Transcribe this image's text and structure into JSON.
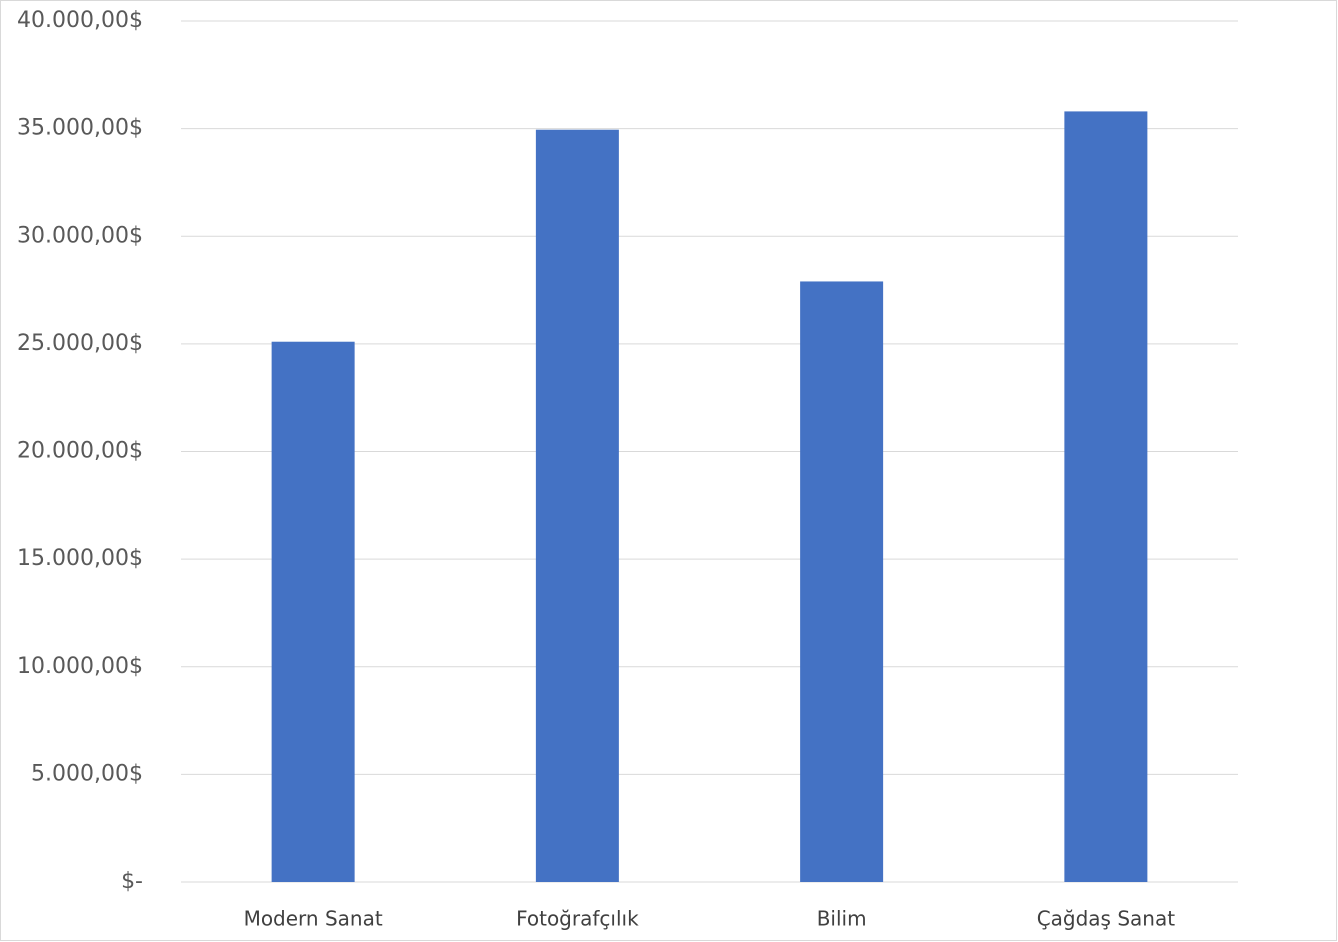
{
  "chart_data": {
    "type": "bar",
    "categories": [
      "Modern Sanat",
      "Fotoğrafçılık",
      "Bilim",
      "Çağdaş Sanat"
    ],
    "values": [
      25100,
      34950,
      27900,
      35800
    ],
    "color": "#4472c4",
    "ylim": [
      0,
      40000
    ],
    "yticks": [
      {
        "value": 0,
        "label": "$-"
      },
      {
        "value": 5000,
        "label": "5.000,00$"
      },
      {
        "value": 10000,
        "label": "10.000,00$"
      },
      {
        "value": 15000,
        "label": "15.000,00$"
      },
      {
        "value": 20000,
        "label": "20.000,00$"
      },
      {
        "value": 25000,
        "label": "25.000,00$"
      },
      {
        "value": 30000,
        "label": "30.000,00$"
      },
      {
        "value": 35000,
        "label": "35.000,00$"
      },
      {
        "value": 40000,
        "label": "40.000,00$"
      }
    ],
    "grid": true
  }
}
